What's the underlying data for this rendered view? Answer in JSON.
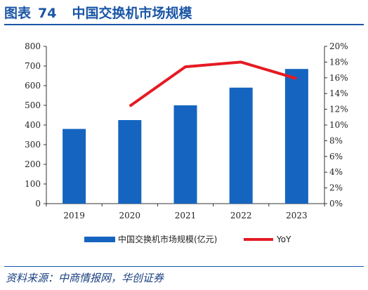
{
  "header": {
    "figure_label": "图表",
    "figure_number": "74",
    "title": "中国交换机市场规模"
  },
  "source": "资料来源：中商情报网，华创证券",
  "chart_data": {
    "type": "bar",
    "categories": [
      "2019",
      "2020",
      "2021",
      "2022",
      "2023"
    ],
    "series": [
      {
        "name": "中国交换机市场规模(亿元)",
        "type": "bar",
        "axis": "left",
        "values": [
          380,
          425,
          500,
          590,
          685
        ],
        "color": "#1565c0"
      },
      {
        "name": "YoY",
        "type": "line",
        "axis": "right",
        "values": [
          null,
          0.124,
          0.174,
          0.18,
          0.159
        ],
        "color": "#e51b23"
      }
    ],
    "y_left": {
      "min": 0,
      "max": 800,
      "step": 100,
      "ticks": [
        "0",
        "100",
        "200",
        "300",
        "400",
        "500",
        "600",
        "700",
        "800"
      ]
    },
    "y_right": {
      "min": 0,
      "max": 0.2,
      "step": 0.02,
      "ticks": [
        "0%",
        "2%",
        "4%",
        "6%",
        "8%",
        "10%",
        "12%",
        "14%",
        "16%",
        "18%",
        "20%"
      ]
    },
    "legend_position": "bottom",
    "grid": false
  }
}
